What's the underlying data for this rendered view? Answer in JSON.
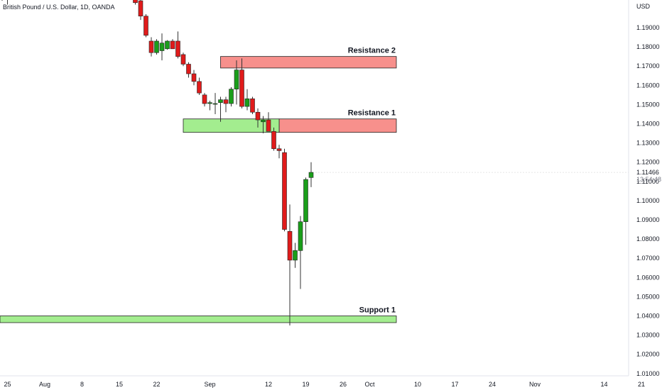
{
  "symbol_title": "British Pound / U.S. Dollar, 1D, OANDA",
  "currency_label": "USD",
  "last_price": "1.11466",
  "countdown": "13:54:48",
  "colors": {
    "up": "#1a9e1a",
    "down": "#e01b1b",
    "resistance_fill": "#f7908c",
    "support_fill": "#a3ed8f",
    "zone_stroke": "#222222",
    "wick": "#333333"
  },
  "chart_data": {
    "type": "candlestick",
    "title": "British Pound / U.S. Dollar, 1D, OANDA",
    "ylabel": "USD",
    "ylim": [
      1.005,
      1.213
    ],
    "y_ticks": [
      "1.19000",
      "1.18000",
      "1.17000",
      "1.16000",
      "1.15000",
      "1.14000",
      "1.13000",
      "1.12000",
      "1.11000",
      "1.10000",
      "1.09000",
      "1.08000",
      "1.07000",
      "1.06000",
      "1.05000",
      "1.04000",
      "1.03000",
      "1.02000",
      "1.01000"
    ],
    "x_ticks": [
      {
        "label": "25",
        "day": -7
      },
      {
        "label": "Aug",
        "day": 0
      },
      {
        "label": "8",
        "day": 7
      },
      {
        "label": "15",
        "day": 14
      },
      {
        "label": "22",
        "day": 21
      },
      {
        "label": "Sep",
        "day": 31
      },
      {
        "label": "12",
        "day": 42
      },
      {
        "label": "19",
        "day": 49
      },
      {
        "label": "26",
        "day": 56
      },
      {
        "label": "Oct",
        "day": 61
      },
      {
        "label": "10",
        "day": 70
      },
      {
        "label": "17",
        "day": 77
      },
      {
        "label": "24",
        "day": 84
      },
      {
        "label": "Nov",
        "day": 92
      },
      {
        "label": "14",
        "day": 105
      },
      {
        "label": "21",
        "day": 112
      }
    ],
    "candles": [
      {
        "day": -8,
        "o": 1.205,
        "h": 1.215,
        "l": 1.204,
        "c": 1.211
      },
      {
        "day": -7,
        "o": 1.208,
        "h": 1.214,
        "l": 1.202,
        "c": 1.212
      },
      {
        "day": 17,
        "o": 1.214,
        "h": 1.216,
        "l": 1.202,
        "c": 1.203
      },
      {
        "day": 18,
        "o": 1.204,
        "h": 1.206,
        "l": 1.194,
        "c": 1.196
      },
      {
        "day": 19,
        "o": 1.196,
        "h": 1.197,
        "l": 1.185,
        "c": 1.186
      },
      {
        "day": 20,
        "o": 1.183,
        "h": 1.185,
        "l": 1.175,
        "c": 1.177
      },
      {
        "day": 21,
        "o": 1.177,
        "h": 1.184,
        "l": 1.176,
        "c": 1.183
      },
      {
        "day": 22,
        "o": 1.178,
        "h": 1.187,
        "l": 1.173,
        "c": 1.182
      },
      {
        "day": 23,
        "o": 1.179,
        "h": 1.1835,
        "l": 1.1785,
        "c": 1.183
      },
      {
        "day": 24,
        "o": 1.183,
        "h": 1.184,
        "l": 1.179,
        "c": 1.179
      },
      {
        "day": 25,
        "o": 1.183,
        "h": 1.188,
        "l": 1.174,
        "c": 1.175
      },
      {
        "day": 26,
        "o": 1.176,
        "h": 1.177,
        "l": 1.17,
        "c": 1.171
      },
      {
        "day": 27,
        "o": 1.171,
        "h": 1.172,
        "l": 1.164,
        "c": 1.166
      },
      {
        "day": 28,
        "o": 1.166,
        "h": 1.168,
        "l": 1.16,
        "c": 1.162
      },
      {
        "day": 29,
        "o": 1.162,
        "h": 1.164,
        "l": 1.155,
        "c": 1.156
      },
      {
        "day": 30,
        "o": 1.155,
        "h": 1.156,
        "l": 1.149,
        "c": 1.1505
      },
      {
        "day": 31,
        "o": 1.1505,
        "h": 1.152,
        "l": 1.147,
        "c": 1.151
      },
      {
        "day": 32,
        "o": 1.1505,
        "h": 1.156,
        "l": 1.145,
        "c": 1.1505
      },
      {
        "day": 33,
        "o": 1.151,
        "h": 1.154,
        "l": 1.141,
        "c": 1.1525
      },
      {
        "day": 34,
        "o": 1.1525,
        "h": 1.154,
        "l": 1.146,
        "c": 1.1505
      },
      {
        "day": 35,
        "o": 1.1505,
        "h": 1.159,
        "l": 1.149,
        "c": 1.158
      },
      {
        "day": 36,
        "o": 1.158,
        "h": 1.173,
        "l": 1.15,
        "c": 1.168
      },
      {
        "day": 37,
        "o": 1.168,
        "h": 1.174,
        "l": 1.148,
        "c": 1.149
      },
      {
        "day": 38,
        "o": 1.149,
        "h": 1.158,
        "l": 1.147,
        "c": 1.153
      },
      {
        "day": 39,
        "o": 1.153,
        "h": 1.154,
        "l": 1.145,
        "c": 1.146
      },
      {
        "day": 40,
        "o": 1.146,
        "h": 1.148,
        "l": 1.138,
        "c": 1.142
      },
      {
        "day": 41,
        "o": 1.141,
        "h": 1.144,
        "l": 1.135,
        "c": 1.142
      },
      {
        "day": 42,
        "o": 1.142,
        "h": 1.146,
        "l": 1.136,
        "c": 1.136
      },
      {
        "day": 43,
        "o": 1.136,
        "h": 1.138,
        "l": 1.126,
        "c": 1.127
      },
      {
        "day": 44,
        "o": 1.127,
        "h": 1.129,
        "l": 1.122,
        "c": 1.126
      },
      {
        "day": 45,
        "o": 1.125,
        "h": 1.127,
        "l": 1.084,
        "c": 1.085
      },
      {
        "day": 46,
        "o": 1.084,
        "h": 1.098,
        "l": 1.035,
        "c": 1.069
      },
      {
        "day": 47,
        "o": 1.069,
        "h": 1.078,
        "l": 1.065,
        "c": 1.074
      },
      {
        "day": 48,
        "o": 1.074,
        "h": 1.092,
        "l": 1.054,
        "c": 1.089
      },
      {
        "day": 49,
        "o": 1.089,
        "h": 1.112,
        "l": 1.077,
        "c": 1.111
      },
      {
        "day": 50,
        "o": 1.112,
        "h": 1.12,
        "l": 1.107,
        "c": 1.1147
      }
    ],
    "zones": [
      {
        "label": "Resistance 2",
        "type": "resistance",
        "y_low": 1.169,
        "y_high": 1.175,
        "day_start": 33,
        "day_end": 66
      },
      {
        "label": "Resistance 1",
        "type": "resistance",
        "y_low": 1.1355,
        "y_high": 1.1425,
        "day_start": 44,
        "day_end": 66
      },
      {
        "label": "",
        "type": "support",
        "y_low": 1.1355,
        "y_high": 1.1425,
        "day_start": 26,
        "day_end": 44
      },
      {
        "label": "Support 1",
        "type": "support",
        "y_low": 1.0365,
        "y_high": 1.04,
        "day_start": -10,
        "day_end": 66
      }
    ],
    "grid": false,
    "legend": "none"
  }
}
